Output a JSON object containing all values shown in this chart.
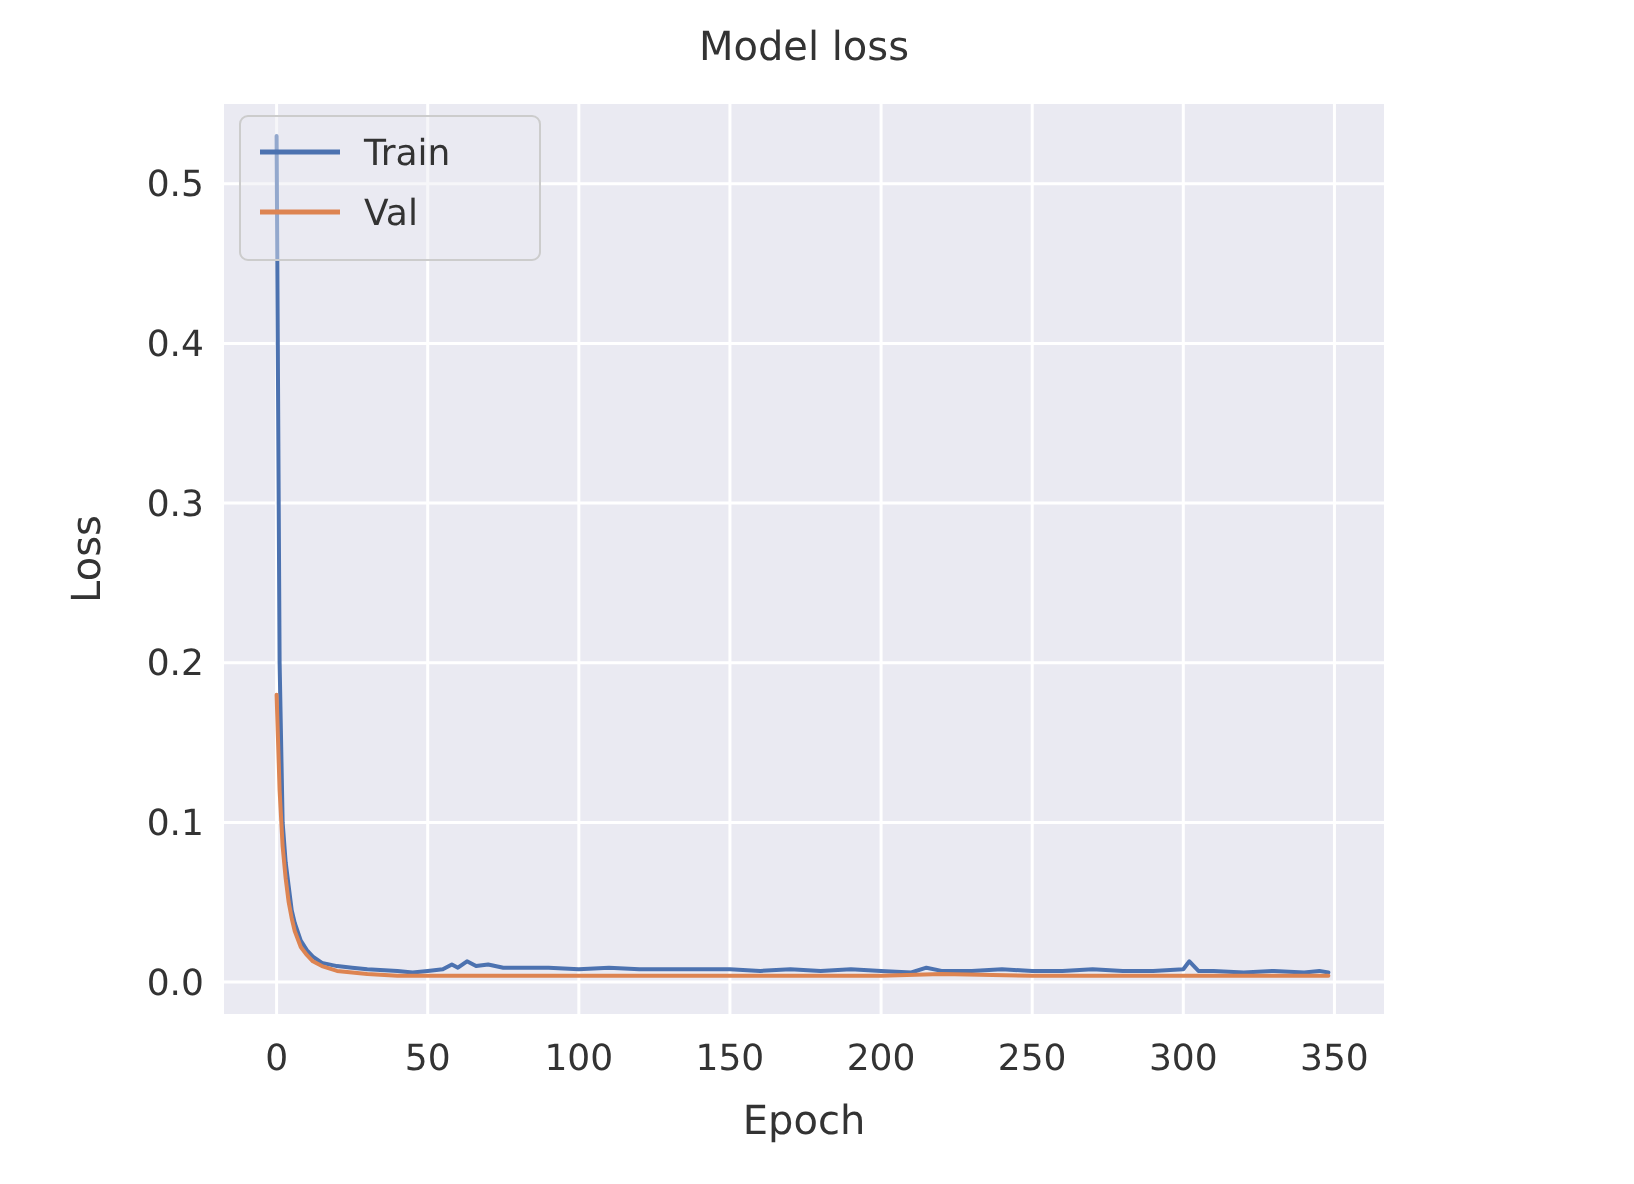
{
  "chart_data": {
    "type": "line",
    "title": "Model loss",
    "xlabel": "Epoch",
    "ylabel": "Loss",
    "xlim": [
      -17.4,
      366.4
    ],
    "ylim": [
      -0.02,
      0.55
    ],
    "xticks": [
      0,
      50,
      100,
      150,
      200,
      250,
      300,
      350
    ],
    "yticks": [
      {
        "value": 0,
        "label": "0.0"
      },
      0.1,
      0.2,
      0.3,
      0.4,
      0.5
    ],
    "grid": true,
    "legend": "top left",
    "series": [
      {
        "name": "Train",
        "color": "#4c72b0",
        "x": [
          0,
          1,
          2,
          3,
          4,
          5,
          6,
          8,
          10,
          12,
          15,
          20,
          25,
          30,
          40,
          45,
          50,
          55,
          58,
          60,
          63,
          66,
          70,
          75,
          80,
          90,
          100,
          110,
          120,
          130,
          140,
          150,
          160,
          170,
          180,
          190,
          200,
          210,
          215,
          220,
          230,
          240,
          250,
          260,
          270,
          280,
          290,
          300,
          302,
          305,
          310,
          320,
          330,
          340,
          345,
          348
        ],
        "values": [
          0.53,
          0.2,
          0.1,
          0.075,
          0.06,
          0.045,
          0.037,
          0.026,
          0.02,
          0.016,
          0.012,
          0.01,
          0.009,
          0.008,
          0.007,
          0.006,
          0.007,
          0.008,
          0.011,
          0.009,
          0.013,
          0.01,
          0.011,
          0.009,
          0.009,
          0.009,
          0.008,
          0.009,
          0.008,
          0.008,
          0.008,
          0.008,
          0.007,
          0.008,
          0.007,
          0.008,
          0.007,
          0.006,
          0.009,
          0.007,
          0.007,
          0.008,
          0.007,
          0.007,
          0.008,
          0.007,
          0.007,
          0.008,
          0.013,
          0.007,
          0.007,
          0.006,
          0.007,
          0.006,
          0.007,
          0.006
        ]
      },
      {
        "name": "Val",
        "color": "#dd8452",
        "x": [
          0,
          1,
          2,
          3,
          4,
          5,
          6,
          8,
          10,
          12,
          15,
          20,
          25,
          30,
          40,
          50,
          60,
          80,
          100,
          120,
          150,
          180,
          200,
          220,
          250,
          280,
          300,
          320,
          348
        ],
        "values": [
          0.18,
          0.12,
          0.085,
          0.065,
          0.05,
          0.04,
          0.032,
          0.022,
          0.017,
          0.013,
          0.01,
          0.007,
          0.006,
          0.005,
          0.004,
          0.004,
          0.004,
          0.004,
          0.004,
          0.004,
          0.004,
          0.004,
          0.004,
          0.005,
          0.004,
          0.004,
          0.004,
          0.004,
          0.004
        ]
      }
    ]
  }
}
